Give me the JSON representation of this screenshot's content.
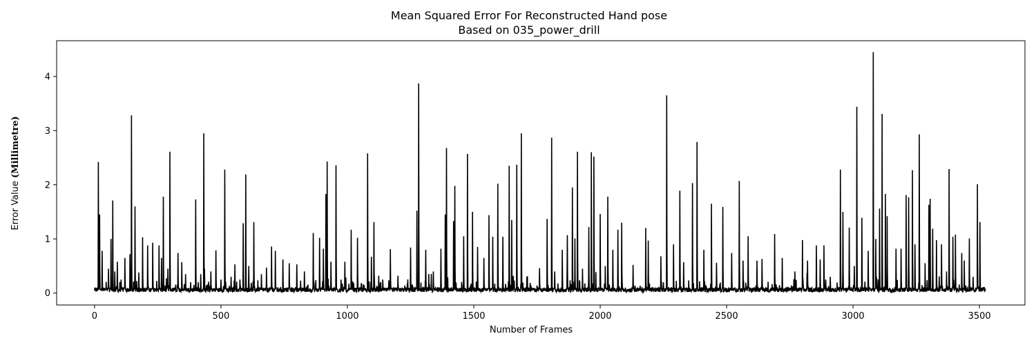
{
  "chart_data": {
    "type": "line",
    "title": "Mean Squared Error For Reconstructed Hand pose",
    "subtitle": "Based on 035_power_drill",
    "xlabel": "Number of Frames",
    "ylabel_prefix": "Error Value ",
    "ylabel_unit": "(Millimetre)",
    "xlim": [
      -150,
      3680
    ],
    "ylim": [
      -0.22,
      4.66
    ],
    "xticks": [
      0,
      500,
      1000,
      1500,
      2000,
      2500,
      3000,
      3500
    ],
    "yticks": [
      0,
      1,
      2,
      3,
      4
    ],
    "grid": false,
    "line_color": "#000000",
    "n_frames": 3525,
    "baseline_mean": 0.07,
    "peaks": [
      [
        15,
        2.42
      ],
      [
        20,
        1.45
      ],
      [
        30,
        0.78
      ],
      [
        55,
        0.45
      ],
      [
        65,
        1.0
      ],
      [
        72,
        1.71
      ],
      [
        80,
        0.4
      ],
      [
        90,
        0.58
      ],
      [
        105,
        0.25
      ],
      [
        120,
        0.65
      ],
      [
        140,
        0.72
      ],
      [
        146,
        3.28
      ],
      [
        160,
        1.6
      ],
      [
        175,
        0.38
      ],
      [
        190,
        1.03
      ],
      [
        210,
        0.88
      ],
      [
        230,
        0.93
      ],
      [
        255,
        0.88
      ],
      [
        265,
        0.65
      ],
      [
        272,
        1.78
      ],
      [
        290,
        0.45
      ],
      [
        298,
        2.61
      ],
      [
        330,
        0.74
      ],
      [
        345,
        0.57
      ],
      [
        360,
        0.35
      ],
      [
        380,
        0.2
      ],
      [
        400,
        1.73
      ],
      [
        420,
        0.35
      ],
      [
        432,
        2.95
      ],
      [
        460,
        0.4
      ],
      [
        480,
        0.79
      ],
      [
        500,
        0.25
      ],
      [
        515,
        2.28
      ],
      [
        540,
        0.3
      ],
      [
        555,
        0.53
      ],
      [
        575,
        0.25
      ],
      [
        588,
        1.29
      ],
      [
        598,
        2.19
      ],
      [
        610,
        0.5
      ],
      [
        630,
        1.31
      ],
      [
        660,
        0.35
      ],
      [
        680,
        0.47
      ],
      [
        700,
        0.86
      ],
      [
        715,
        0.78
      ],
      [
        745,
        0.62
      ],
      [
        770,
        0.55
      ],
      [
        800,
        0.53
      ],
      [
        830,
        0.4
      ],
      [
        865,
        1.11
      ],
      [
        890,
        1.02
      ],
      [
        905,
        0.82
      ],
      [
        915,
        1.83
      ],
      [
        920,
        2.43
      ],
      [
        935,
        0.58
      ],
      [
        955,
        2.36
      ],
      [
        975,
        0.25
      ],
      [
        990,
        0.58
      ],
      [
        1015,
        1.17
      ],
      [
        1040,
        1.02
      ],
      [
        1080,
        2.58
      ],
      [
        1095,
        0.67
      ],
      [
        1105,
        1.31
      ],
      [
        1140,
        0.25
      ],
      [
        1170,
        0.81
      ],
      [
        1200,
        0.32
      ],
      [
        1250,
        0.84
      ],
      [
        1275,
        1.52
      ],
      [
        1282,
        3.87
      ],
      [
        1310,
        0.8
      ],
      [
        1340,
        0.4
      ],
      [
        1370,
        0.82
      ],
      [
        1387,
        1.45
      ],
      [
        1392,
        2.68
      ],
      [
        1420,
        1.33
      ],
      [
        1425,
        1.98
      ],
      [
        1460,
        1.05
      ],
      [
        1475,
        2.57
      ],
      [
        1495,
        1.5
      ],
      [
        1515,
        0.85
      ],
      [
        1540,
        0.65
      ],
      [
        1560,
        1.44
      ],
      [
        1575,
        1.04
      ],
      [
        1595,
        2.02
      ],
      [
        1615,
        1.04
      ],
      [
        1640,
        2.35
      ],
      [
        1650,
        1.35
      ],
      [
        1670,
        2.37
      ],
      [
        1688,
        2.95
      ],
      [
        1710,
        0.3
      ],
      [
        1760,
        0.46
      ],
      [
        1790,
        1.37
      ],
      [
        1808,
        2.87
      ],
      [
        1820,
        0.4
      ],
      [
        1850,
        0.8
      ],
      [
        1870,
        1.07
      ],
      [
        1890,
        1.95
      ],
      [
        1900,
        1.01
      ],
      [
        1910,
        2.61
      ],
      [
        1930,
        0.45
      ],
      [
        1955,
        1.22
      ],
      [
        1965,
        2.6
      ],
      [
        1975,
        2.52
      ],
      [
        2000,
        1.46
      ],
      [
        2020,
        0.5
      ],
      [
        2030,
        1.78
      ],
      [
        2050,
        0.8
      ],
      [
        2070,
        1.17
      ],
      [
        2085,
        1.3
      ],
      [
        2130,
        0.52
      ],
      [
        2180,
        1.2
      ],
      [
        2190,
        0.97
      ],
      [
        2240,
        0.68
      ],
      [
        2250,
        0.2
      ],
      [
        2263,
        3.65
      ],
      [
        2290,
        0.9
      ],
      [
        2315,
        1.89
      ],
      [
        2330,
        0.57
      ],
      [
        2365,
        2.03
      ],
      [
        2383,
        2.79
      ],
      [
        2410,
        0.8
      ],
      [
        2440,
        1.65
      ],
      [
        2460,
        0.56
      ],
      [
        2485,
        1.59
      ],
      [
        2520,
        0.74
      ],
      [
        2550,
        2.07
      ],
      [
        2565,
        0.6
      ],
      [
        2585,
        1.05
      ],
      [
        2620,
        0.6
      ],
      [
        2640,
        0.63
      ],
      [
        2690,
        1.09
      ],
      [
        2720,
        0.65
      ],
      [
        2770,
        0.4
      ],
      [
        2800,
        0.98
      ],
      [
        2820,
        0.6
      ],
      [
        2855,
        0.88
      ],
      [
        2870,
        0.62
      ],
      [
        2885,
        0.88
      ],
      [
        2910,
        0.3
      ],
      [
        2950,
        2.28
      ],
      [
        2960,
        1.5
      ],
      [
        2985,
        1.21
      ],
      [
        3005,
        0.5
      ],
      [
        3015,
        3.44
      ],
      [
        3035,
        1.39
      ],
      [
        3060,
        0.78
      ],
      [
        3080,
        4.45
      ],
      [
        3090,
        1.0
      ],
      [
        3105,
        1.56
      ],
      [
        3115,
        3.31
      ],
      [
        3128,
        1.83
      ],
      [
        3135,
        1.42
      ],
      [
        3170,
        0.82
      ],
      [
        3190,
        0.82
      ],
      [
        3210,
        1.81
      ],
      [
        3220,
        1.77
      ],
      [
        3235,
        2.27
      ],
      [
        3245,
        0.9
      ],
      [
        3262,
        2.93
      ],
      [
        3285,
        0.55
      ],
      [
        3300,
        1.63
      ],
      [
        3305,
        1.74
      ],
      [
        3315,
        1.19
      ],
      [
        3330,
        0.98
      ],
      [
        3350,
        0.9
      ],
      [
        3370,
        0.4
      ],
      [
        3380,
        2.29
      ],
      [
        3395,
        1.04
      ],
      [
        3405,
        1.08
      ],
      [
        3430,
        0.74
      ],
      [
        3440,
        0.6
      ],
      [
        3460,
        1.01
      ],
      [
        3475,
        0.3
      ],
      [
        3492,
        2.01
      ],
      [
        3502,
        1.31
      ],
      [
        3515,
        0.1
      ]
    ]
  }
}
